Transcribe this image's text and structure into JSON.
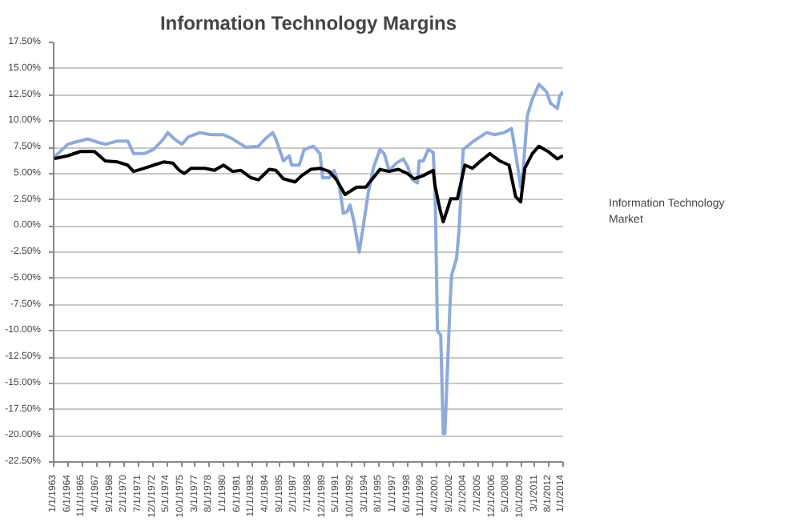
{
  "chart_data": {
    "type": "line",
    "title": "Information Technology Margins",
    "ylim": [
      -22.5,
      17.5
    ],
    "yticks": [
      {
        "value": -22.5,
        "label": "-22.50%"
      },
      {
        "value": -20,
        "label": "-20.00%"
      },
      {
        "value": -17.5,
        "label": "-17.50%"
      },
      {
        "value": -15,
        "label": "-15.00%"
      },
      {
        "value": -12.5,
        "label": "-12.50%"
      },
      {
        "value": -10,
        "label": "-10.00%"
      },
      {
        "value": -7.5,
        "label": "-7.50%"
      },
      {
        "value": -5,
        "label": "-5.00%"
      },
      {
        "value": -2.5,
        "label": "-2.50%"
      },
      {
        "value": 0,
        "label": "0.00%"
      },
      {
        "value": 2.5,
        "label": "2.50%"
      },
      {
        "value": 5,
        "label": "5.00%"
      },
      {
        "value": 7.5,
        "label": "7.50%"
      },
      {
        "value": 10,
        "label": "10.00%"
      },
      {
        "value": 12.5,
        "label": "12.50%"
      },
      {
        "value": 15,
        "label": "15.00%"
      },
      {
        "value": 17.5,
        "label": "17.50%"
      }
    ],
    "xlim": [
      "1963-01",
      "2014-01"
    ],
    "xticks": [
      {
        "value": "1963-01",
        "label": "1/1/1963"
      },
      {
        "value": "1964-06",
        "label": "6/1/1964"
      },
      {
        "value": "1965-11",
        "label": "11/1/1965"
      },
      {
        "value": "1967-04",
        "label": "4/1/1967"
      },
      {
        "value": "1968-09",
        "label": "9/1/1968"
      },
      {
        "value": "1970-02",
        "label": "2/1/1970"
      },
      {
        "value": "1971-07",
        "label": "7/1/1971"
      },
      {
        "value": "1972-12",
        "label": "12/1/1972"
      },
      {
        "value": "1974-05",
        "label": "5/1/1974"
      },
      {
        "value": "1975-10",
        "label": "10/1/1975"
      },
      {
        "value": "1977-03",
        "label": "3/1/1977"
      },
      {
        "value": "1978-08",
        "label": "8/1/1978"
      },
      {
        "value": "1980-01",
        "label": "1/1/1980"
      },
      {
        "value": "1981-06",
        "label": "6/1/1981"
      },
      {
        "value": "1982-11",
        "label": "11/1/1982"
      },
      {
        "value": "1984-04",
        "label": "4/1/1984"
      },
      {
        "value": "1985-09",
        "label": "9/1/1985"
      },
      {
        "value": "1987-02",
        "label": "2/1/1987"
      },
      {
        "value": "1988-07",
        "label": "7/1/1988"
      },
      {
        "value": "1989-12",
        "label": "12/1/1989"
      },
      {
        "value": "1991-05",
        "label": "5/1/1991"
      },
      {
        "value": "1992-10",
        "label": "10/1/1992"
      },
      {
        "value": "1994-03",
        "label": "3/1/1994"
      },
      {
        "value": "1995-08",
        "label": "8/1/1995"
      },
      {
        "value": "1997-01",
        "label": "1/1/1997"
      },
      {
        "value": "1998-06",
        "label": "6/1/1998"
      },
      {
        "value": "1999-11",
        "label": "11/1/1999"
      },
      {
        "value": "2001-04",
        "label": "4/1/2001"
      },
      {
        "value": "2002-09",
        "label": "9/1/2002"
      },
      {
        "value": "2004-02",
        "label": "2/1/2004"
      },
      {
        "value": "2005-07",
        "label": "7/1/2005"
      },
      {
        "value": "2006-12",
        "label": "12/1/2006"
      },
      {
        "value": "2008-05",
        "label": "5/1/2008"
      },
      {
        "value": "2009-10",
        "label": "10/1/2009"
      },
      {
        "value": "2011-03",
        "label": "3/1/2011"
      },
      {
        "value": "2012-08",
        "label": "8/1/2012"
      },
      {
        "value": "2014-01",
        "label": "1/1/2014"
      }
    ],
    "grid": "y",
    "legend": "right",
    "marker": "none",
    "line_style": "solid",
    "series": [
      {
        "name": "Information Technology",
        "color": "#8eaadb",
        "x": [
          "1963-01",
          "1964-06",
          "1965-03",
          "1966-06",
          "1967-05",
          "1968-03",
          "1969-06",
          "1970-06",
          "1971-01",
          "1972-02",
          "1973-01",
          "1974-01",
          "1974-06",
          "1975-02",
          "1975-11",
          "1976-07",
          "1977-09",
          "1978-10",
          "1980-01",
          "1980-12",
          "1981-10",
          "1982-04",
          "1983-07",
          "1984-03",
          "1984-12",
          "1985-04",
          "1986-01",
          "1986-08",
          "1986-11",
          "1987-08",
          "1988-02",
          "1989-01",
          "1989-09",
          "1989-12",
          "1990-08",
          "1991-02",
          "1991-08",
          "1992-01",
          "1992-06",
          "1992-09",
          "1993-02",
          "1993-08",
          "1994-01",
          "1994-07",
          "1995-01",
          "1995-09",
          "1996-02",
          "1996-08",
          "1997-05",
          "1998-01",
          "1998-06",
          "1998-12",
          "1999-06",
          "1999-08",
          "2000-01",
          "2000-07",
          "2001-01",
          "2001-03",
          "2001-04",
          "2001-06",
          "2001-10",
          "2002-01",
          "2002-03",
          "2002-07",
          "2002-09",
          "2002-11",
          "2003-05",
          "2003-08",
          "2004-01",
          "2004-12",
          "2006-05",
          "2007-03",
          "2008-02",
          "2008-11",
          "2009-05",
          "2009-10",
          "2010-01",
          "2010-06",
          "2010-12",
          "2011-08",
          "2012-05",
          "2012-10",
          "2013-06",
          "2013-09",
          "2014-01"
        ],
        "values": [
          6.5,
          7.8,
          8.0,
          8.3,
          8.0,
          7.8,
          8.1,
          8.1,
          6.9,
          6.9,
          7.3,
          8.3,
          8.9,
          8.3,
          7.8,
          8.5,
          8.9,
          8.7,
          8.7,
          8.3,
          7.8,
          7.5,
          7.6,
          8.3,
          8.9,
          8.3,
          6.2,
          6.7,
          5.8,
          5.8,
          7.3,
          7.6,
          6.9,
          4.6,
          4.6,
          5.3,
          3.9,
          1.2,
          1.4,
          2.0,
          0.3,
          -2.5,
          0.0,
          3.2,
          5.5,
          7.3,
          6.9,
          5.3,
          6.0,
          6.4,
          5.7,
          4.4,
          4.1,
          6.2,
          6.2,
          7.3,
          7.0,
          3.7,
          0.0,
          -10.0,
          -10.4,
          -19.8,
          -19.8,
          -11.8,
          -7.7,
          -4.7,
          -3.1,
          -0.4,
          7.3,
          8.0,
          8.9,
          8.7,
          8.9,
          9.3,
          6.4,
          3.7,
          5.3,
          10.5,
          12.1,
          13.5,
          12.8,
          11.7,
          11.2,
          12.4,
          12.8
        ]
      },
      {
        "name": "Market",
        "color": "#000000",
        "x": [
          "1963-01",
          "1964-06",
          "1965-09",
          "1967-02",
          "1968-03",
          "1969-06",
          "1970-06",
          "1971-01",
          "1972-02",
          "1973-01",
          "1974-01",
          "1974-12",
          "1975-08",
          "1976-02",
          "1976-10",
          "1978-03",
          "1979-02",
          "1980-01",
          "1980-12",
          "1981-10",
          "1982-10",
          "1983-07",
          "1984-08",
          "1985-04",
          "1986-01",
          "1987-03",
          "1987-11",
          "1988-10",
          "1989-09",
          "1990-08",
          "1991-04",
          "1992-03",
          "1993-05",
          "1994-04",
          "1995-01",
          "1995-09",
          "1996-02",
          "1996-08",
          "1997-07",
          "1998-06",
          "1999-02",
          "2000-01",
          "2001-01",
          "2001-03",
          "2001-09",
          "2002-01",
          "2002-06",
          "2002-10",
          "2003-06",
          "2004-03",
          "2004-12",
          "2005-10",
          "2006-09",
          "2007-09",
          "2008-08",
          "2009-04",
          "2009-10",
          "2010-03",
          "2010-12",
          "2011-08",
          "2012-07",
          "2013-06",
          "2014-01"
        ],
        "values": [
          6.4,
          6.7,
          7.1,
          7.1,
          6.2,
          6.1,
          5.8,
          5.2,
          5.5,
          5.8,
          6.1,
          6.0,
          5.3,
          5.0,
          5.5,
          5.5,
          5.3,
          5.8,
          5.2,
          5.3,
          4.6,
          4.4,
          5.4,
          5.3,
          4.5,
          4.2,
          4.8,
          5.4,
          5.5,
          5.2,
          4.5,
          3.0,
          3.7,
          3.7,
          4.6,
          5.4,
          5.3,
          5.2,
          5.4,
          5.0,
          4.5,
          4.8,
          5.3,
          3.9,
          1.6,
          0.4,
          1.6,
          2.6,
          2.6,
          5.8,
          5.5,
          6.2,
          6.9,
          6.2,
          5.8,
          2.8,
          2.3,
          5.5,
          6.9,
          7.6,
          7.1,
          6.4,
          6.7
        ]
      }
    ]
  }
}
